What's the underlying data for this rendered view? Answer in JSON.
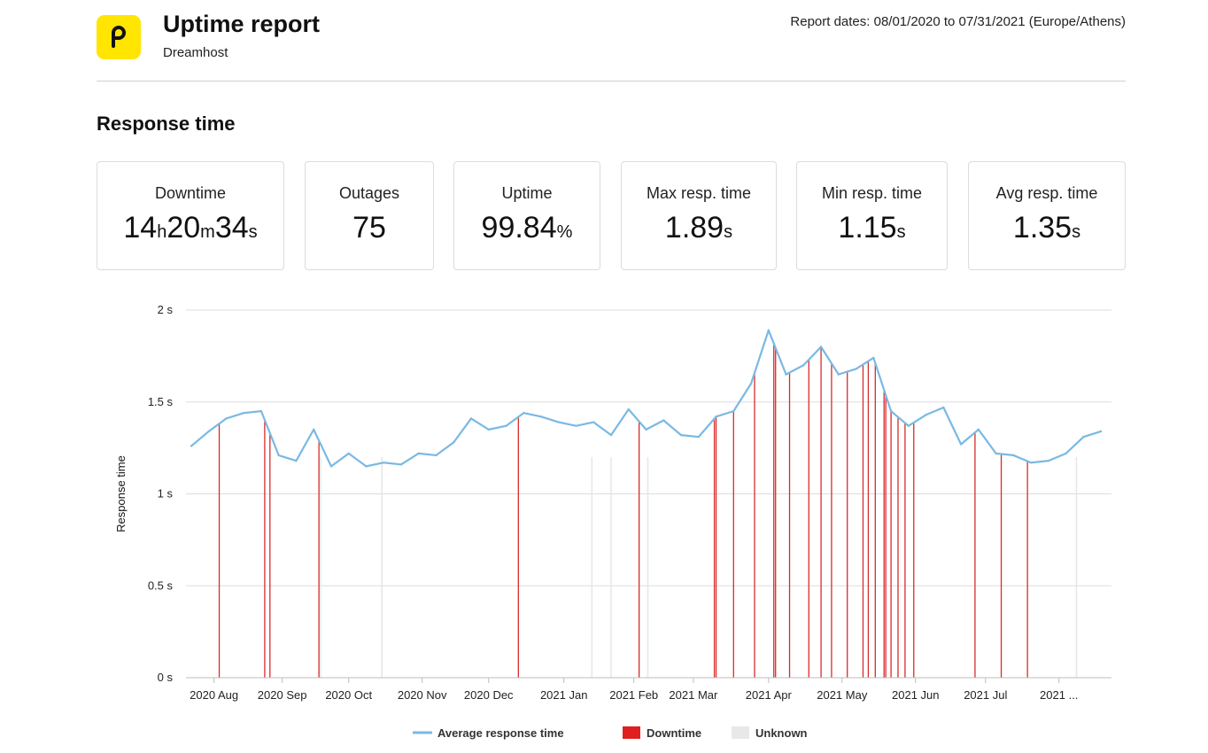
{
  "header": {
    "title": "Uptime report",
    "subtitle": "Dreamhost",
    "report_dates": "Report dates: 08/01/2020 to 07/31/2021 (Europe/Athens)",
    "logo_color": "#ffe500"
  },
  "section_title": "Response time",
  "stats": {
    "downtime": {
      "label": "Downtime",
      "h": "14",
      "h_unit": "h",
      "m": "20",
      "m_unit": "m",
      "s": "34",
      "s_unit": "s"
    },
    "outages": {
      "label": "Outages",
      "value": "75"
    },
    "uptime": {
      "label": "Uptime",
      "value": "99.84",
      "unit": "%"
    },
    "max": {
      "label": "Max resp. time",
      "value": "1.89",
      "unit": "s"
    },
    "min": {
      "label": "Min resp. time",
      "value": "1.15",
      "unit": "s"
    },
    "avg": {
      "label": "Avg resp. time",
      "value": "1.35",
      "unit": "s"
    }
  },
  "chart_data": {
    "type": "line",
    "ylabel": "Response time",
    "ylim": [
      0,
      2
    ],
    "yticks": [
      0,
      0.5,
      1,
      1.5,
      2
    ],
    "ytick_labels": [
      "0 s",
      "0.5 s",
      "1 s",
      "1.5 s",
      "2 s"
    ],
    "x_range_weeks": [
      -0.3,
      52.6
    ],
    "x_tick_positions_weeks": [
      1.3,
      5.2,
      9.0,
      13.2,
      17.0,
      21.3,
      25.3,
      28.7,
      33.0,
      37.2,
      41.4,
      45.4,
      49.6
    ],
    "x_tick_labels": [
      "2020 Aug",
      "2020 Sep",
      "2020 Oct",
      "2020 Nov",
      "2020 Dec",
      "2021 Jan",
      "2021 Feb",
      "2021 Mar",
      "2021 Apr",
      "2021 May",
      "2021 Jun",
      "2021 Jul",
      "2021 ..."
    ],
    "series": [
      {
        "name": "Average response time",
        "color": "#7ab9e3",
        "values": [
          1.26,
          1.34,
          1.41,
          1.44,
          1.45,
          1.21,
          1.18,
          1.35,
          1.15,
          1.22,
          1.15,
          1.17,
          1.16,
          1.22,
          1.21,
          1.28,
          1.41,
          1.35,
          1.37,
          1.44,
          1.42,
          1.39,
          1.37,
          1.39,
          1.32,
          1.46,
          1.35,
          1.4,
          1.32,
          1.31,
          1.42,
          1.45,
          1.6,
          1.89,
          1.65,
          1.7,
          1.8,
          1.65,
          1.68,
          1.74,
          1.45,
          1.37,
          1.43,
          1.47,
          1.27,
          1.35,
          1.22,
          1.21,
          1.17,
          1.18,
          1.22,
          1.31,
          1.34
        ]
      }
    ],
    "downtime_weeks": [
      1.6,
      4.2,
      4.5,
      7.3,
      18.7,
      25.6,
      29.9,
      30.0,
      31.0,
      32.2,
      33.3,
      33.4,
      34.2,
      35.3,
      36.0,
      36.6,
      37.5,
      38.4,
      38.7,
      39.1,
      39.6,
      39.7,
      40.0,
      40.4,
      40.8,
      41.3,
      44.8,
      46.3,
      47.8
    ],
    "unknown_weeks": [
      7.4,
      10.9,
      22.9,
      24.0,
      26.1,
      50.6
    ],
    "legend": [
      {
        "label": "Average response time",
        "kind": "line",
        "color": "#7ab9e3"
      },
      {
        "label": "Downtime",
        "kind": "box",
        "color": "#e02020"
      },
      {
        "label": "Unknown",
        "kind": "box",
        "color": "#e8e8e8"
      }
    ]
  }
}
